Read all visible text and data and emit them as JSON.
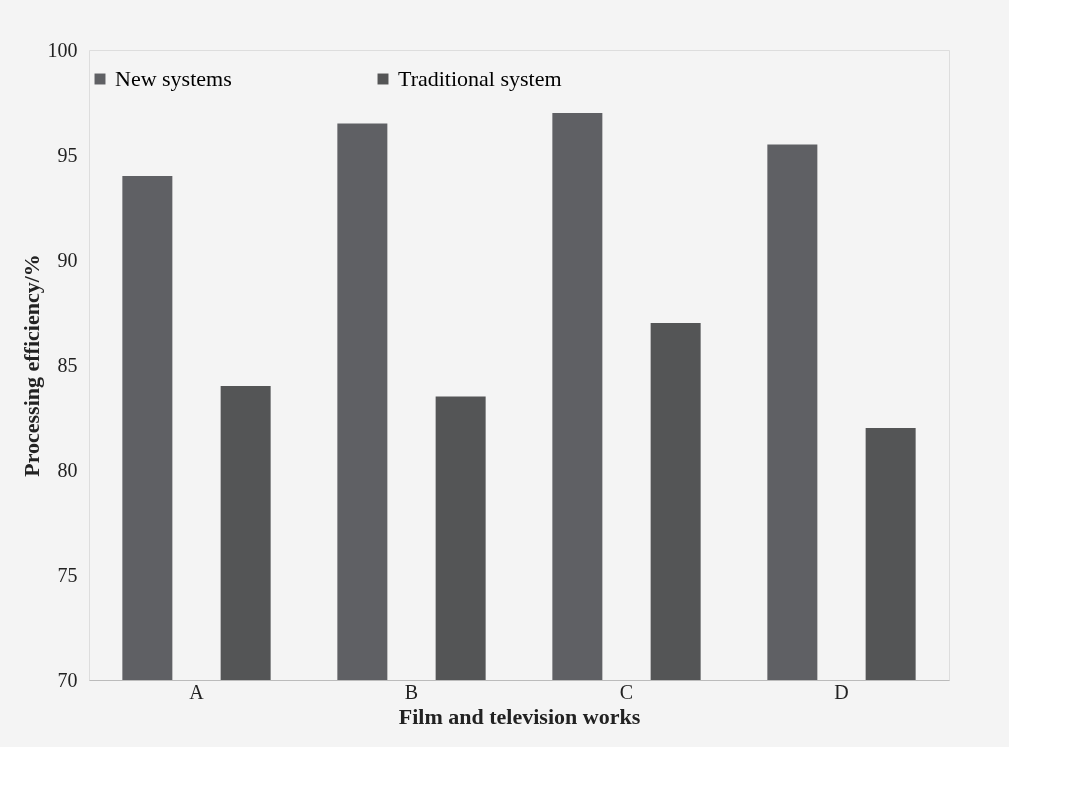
{
  "chart_data": {
    "type": "bar",
    "xlabel": "Film and television works",
    "ylabel": "Processing efficiency/%",
    "categories": [
      "A",
      "B",
      "C",
      "D"
    ],
    "series": [
      {
        "name": "New systems",
        "color": "#5f6064",
        "values": [
          94,
          96.5,
          97,
          95.5
        ]
      },
      {
        "name": "Traditional system",
        "color": "#545556",
        "values": [
          84,
          83.5,
          87,
          82
        ]
      }
    ],
    "ylim": [
      70,
      100
    ],
    "yticks": [
      70,
      75,
      80,
      85,
      90,
      95,
      100
    ],
    "grid": false,
    "legend": "top"
  }
}
